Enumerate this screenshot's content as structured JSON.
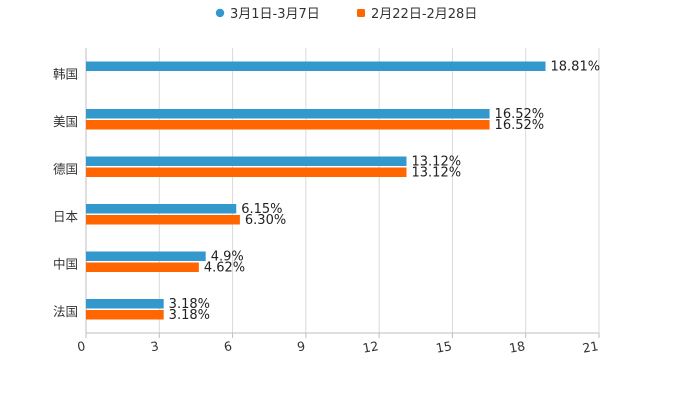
{
  "chart_data": {
    "type": "bar",
    "orientation": "horizontal",
    "title": "",
    "xlabel": "",
    "ylabel": "",
    "categories": [
      "韩国",
      "美国",
      "德国",
      "日本",
      "中国",
      "法国"
    ],
    "series": [
      {
        "name": "3月1日-3月7日",
        "color": "#3399cc",
        "values": [
          18.81,
          16.52,
          13.12,
          6.15,
          4.9,
          3.18
        ],
        "labels": [
          "18.81%",
          "16.52%",
          "13.12%",
          "6.15%",
          "4.9%",
          "3.18%"
        ]
      },
      {
        "name": "2月22日-2月28日",
        "color": "#ff6600",
        "values": [
          null,
          16.52,
          13.12,
          6.3,
          4.62,
          3.18
        ],
        "labels": [
          "",
          "16.52%",
          "13.12%",
          "6.30%",
          "4.62%",
          "3.18%"
        ]
      }
    ],
    "xlim": [
      0,
      21
    ],
    "xticks": [
      "0",
      "3",
      "6",
      "9",
      "12",
      "15",
      "18",
      "21"
    ],
    "grid": true,
    "legend_position": "top-center"
  }
}
